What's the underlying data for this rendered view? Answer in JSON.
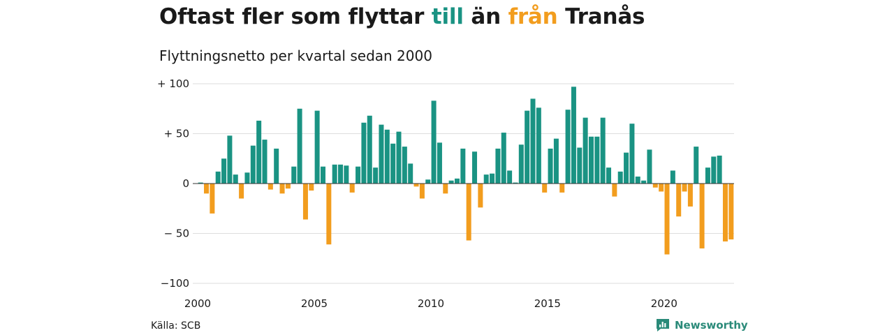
{
  "title": {
    "part1": "Oftast fler som flyttar ",
    "till": "till",
    "part2": " än ",
    "fran": "från",
    "part3": " Tranås"
  },
  "subtitle": "Flyttningsnetto per kvartal sedan 2000",
  "source": "Källa: SCB",
  "brand": {
    "name": "Newsworthy",
    "icon": "newsworthy-logo-icon"
  },
  "colors": {
    "positive": "#1a9383",
    "negative": "#f29d1e",
    "grid": "#dddddd",
    "text": "#1a1a1a"
  },
  "chart_data": {
    "type": "bar",
    "ylim": [
      -100,
      100
    ],
    "y_ticks": [
      100,
      50,
      0,
      -50,
      -100
    ],
    "y_tick_labels": [
      "+ 100",
      "+  50",
      "0",
      "− 50",
      "−100"
    ],
    "x_ticks": [
      2000,
      2005,
      2010,
      2015,
      2020
    ],
    "x_tick_labels": [
      "2000",
      "2005",
      "2010",
      "2015",
      "2020"
    ],
    "start_year": 2000,
    "values": [
      1,
      -10,
      -30,
      12,
      25,
      48,
      9,
      -15,
      11,
      38,
      63,
      44,
      -6,
      35,
      -10,
      -5,
      17,
      75,
      -36,
      -7,
      73,
      17,
      -61,
      19,
      19,
      18,
      -9,
      17,
      61,
      68,
      16,
      59,
      54,
      40,
      52,
      37,
      20,
      -3,
      -15,
      4,
      83,
      41,
      -10,
      3,
      5,
      35,
      -57,
      32,
      -24,
      9,
      10,
      35,
      51,
      13,
      1,
      39,
      73,
      85,
      76,
      -9,
      35,
      45,
      -9,
      74,
      97,
      36,
      66,
      47,
      47,
      66,
      16,
      -13,
      12,
      31,
      60,
      7,
      3,
      34,
      -4,
      -8,
      -71,
      13,
      -33,
      -8,
      -23,
      37,
      -65,
      16,
      27,
      28,
      -58,
      -56
    ]
  }
}
